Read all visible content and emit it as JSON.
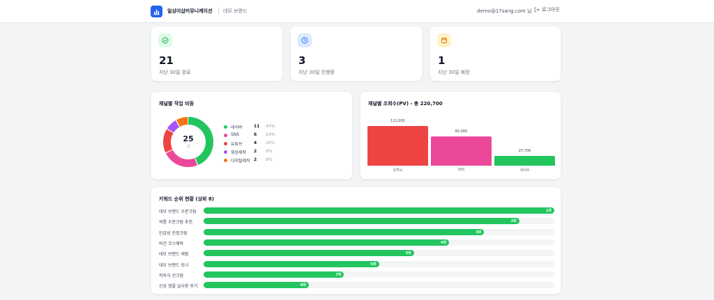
{
  "header": {
    "app_title": "일상이샵커뮤니케이션",
    "brand": "데모 브랜드",
    "user_email": "demo@17sang.com 님",
    "logout_label": "로그아웃"
  },
  "stats": [
    {
      "value": "21",
      "label": "지난 30일 완료",
      "icon": "check-circle-icon",
      "color": "#22c55e"
    },
    {
      "value": "3",
      "label": "지난 30일 진행중",
      "icon": "clock-icon",
      "color": "#3b82f6"
    },
    {
      "value": "1",
      "label": "지난 30일 예정",
      "icon": "calendar-icon",
      "color": "#f59e0b"
    }
  ],
  "channel_share": {
    "title": "채널별 작업 비중",
    "total": "25",
    "total_unit": "건",
    "items": [
      {
        "name": "네이버",
        "count": "11",
        "pct": "44%",
        "value": 11,
        "color": "#22c55e"
      },
      {
        "name": "SNS",
        "count": "6",
        "pct": "24%",
        "value": 6,
        "color": "#ec4899"
      },
      {
        "name": "유튜브",
        "count": "4",
        "pct": "16%",
        "value": 4,
        "color": "#ef4444"
      },
      {
        "name": "영상제작",
        "count": "2",
        "pct": "8%",
        "value": 2,
        "color": "#a855f7"
      },
      {
        "name": "디지털제작",
        "count": "2",
        "pct": "8%",
        "value": 2,
        "color": "#f97316"
      }
    ]
  },
  "views": {
    "title": "채널별 조회수(PV) - 총 220,700",
    "chart_data": {
      "type": "bar",
      "categories": [
        "유튜브",
        "SNS",
        "네이버"
      ],
      "values": [
        111000,
        82000,
        27700
      ],
      "value_labels": [
        "111,000",
        "82,000",
        "27,700"
      ],
      "colors": [
        "#ef4444",
        "#ec4899",
        "#22c55e"
      ],
      "ylim": [
        0,
        111000
      ]
    }
  },
  "keywords": {
    "title": "키워드 순위 현황 (상위 8)",
    "items": [
      {
        "label": "데모 브랜드 수분크림",
        "rank": "1위",
        "fraction": 1.0
      },
      {
        "label": "여름 수분크림 추천",
        "rank": "2위",
        "fraction": 0.9
      },
      {
        "label": "민감성 진정크림",
        "rank": "3위",
        "fraction": 0.8
      },
      {
        "label": "비건 코스메틱",
        "rank": "4위",
        "fraction": 0.7
      },
      {
        "label": "데모 브랜드 세럼",
        "rank": "5위",
        "fraction": 0.6
      },
      {
        "label": "데모 브랜드 토너",
        "rank": "6위",
        "fraction": 0.5
      },
      {
        "label": "저자극 선크림",
        "rank": "7위",
        "fraction": 0.4
      },
      {
        "label": "신상 앰플 실사용 후기",
        "rank": "8위",
        "fraction": 0.3
      }
    ]
  }
}
